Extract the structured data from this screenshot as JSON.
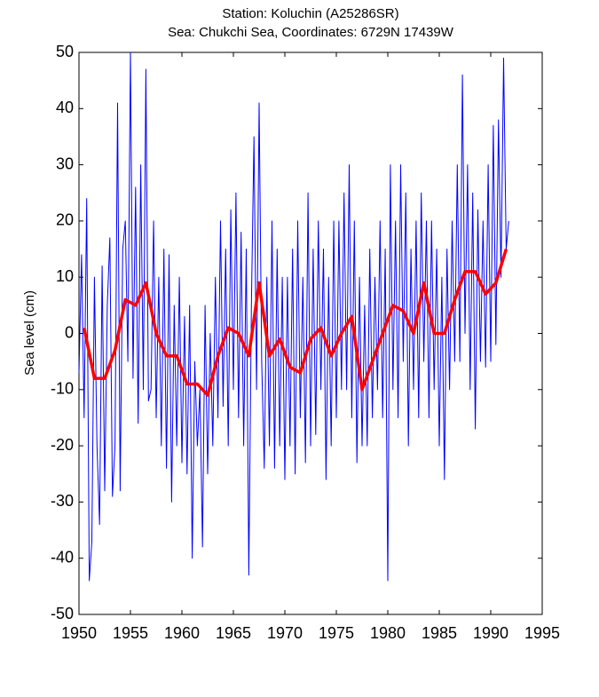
{
  "chart_data": {
    "type": "line",
    "title": "Station: Koluchin (A25286SR)",
    "subtitle": "Sea: Chukchi Sea, Coordinates: 6729N 17439W",
    "ylabel": "Sea level (cm)",
    "xlim": [
      1950,
      1995
    ],
    "xticks": [
      1950,
      1955,
      1960,
      1965,
      1970,
      1975,
      1980,
      1985,
      1990,
      1995
    ],
    "ylim": [
      -50,
      50
    ],
    "yticks": [
      -50,
      -40,
      -30,
      -20,
      -10,
      0,
      10,
      20,
      30,
      40,
      50
    ],
    "grid": false,
    "series": [
      {
        "color": "#0000ff",
        "width": 1,
        "x": [
          1950,
          1950.25,
          1950.5,
          1950.75,
          1951,
          1951.25,
          1951.5,
          1951.75,
          1952,
          1952.25,
          1952.5,
          1952.75,
          1953,
          1953.25,
          1953.5,
          1953.75,
          1954,
          1954.25,
          1954.5,
          1954.75,
          1955,
          1955.25,
          1955.5,
          1955.75,
          1956,
          1956.25,
          1956.5,
          1956.75,
          1957,
          1957.25,
          1957.5,
          1957.75,
          1958,
          1958.25,
          1958.5,
          1958.75,
          1959,
          1959.25,
          1959.5,
          1959.75,
          1960,
          1960.25,
          1960.5,
          1960.75,
          1961,
          1961.25,
          1961.5,
          1961.75,
          1962,
          1962.25,
          1962.5,
          1962.75,
          1963,
          1963.25,
          1963.5,
          1963.75,
          1964,
          1964.25,
          1964.5,
          1964.75,
          1965,
          1965.25,
          1965.5,
          1965.75,
          1966,
          1966.25,
          1966.5,
          1966.75,
          1967,
          1967.25,
          1967.5,
          1967.75,
          1968,
          1968.25,
          1968.5,
          1968.75,
          1969,
          1969.25,
          1969.5,
          1969.75,
          1970,
          1970.25,
          1970.5,
          1970.75,
          1971,
          1971.25,
          1971.5,
          1971.75,
          1972,
          1972.25,
          1972.5,
          1972.75,
          1973,
          1973.25,
          1973.5,
          1973.75,
          1974,
          1974.25,
          1974.5,
          1974.75,
          1975,
          1975.25,
          1975.5,
          1975.75,
          1976,
          1976.25,
          1976.5,
          1976.75,
          1977,
          1977.25,
          1977.5,
          1977.75,
          1978,
          1978.25,
          1978.5,
          1978.75,
          1979,
          1979.25,
          1979.5,
          1979.75,
          1980,
          1980.25,
          1980.5,
          1980.75,
          1981,
          1981.25,
          1981.5,
          1981.75,
          1982,
          1982.25,
          1982.5,
          1982.75,
          1983,
          1983.25,
          1983.5,
          1983.75,
          1984,
          1984.25,
          1984.5,
          1984.75,
          1985,
          1985.25,
          1985.5,
          1985.75,
          1986,
          1986.25,
          1986.5,
          1986.75,
          1987,
          1987.25,
          1987.5,
          1987.75,
          1988,
          1988.25,
          1988.5,
          1988.75,
          1989,
          1989.25,
          1989.5,
          1989.75,
          1990,
          1990.25,
          1990.5,
          1990.75,
          1991,
          1991.25,
          1991.5,
          1991.75
        ],
        "values": [
          -7,
          14,
          -15,
          24,
          -44,
          -37,
          10,
          -20,
          -34,
          12,
          -28,
          5,
          17,
          -29,
          -20,
          41,
          -28,
          15,
          20,
          -5,
          50,
          -8,
          26,
          -16,
          30,
          -10,
          47,
          -12,
          -10,
          20,
          -15,
          10,
          -20,
          15,
          -24,
          14,
          -30,
          5,
          -20,
          10,
          -23,
          3,
          -25,
          5,
          -40,
          -5,
          -20,
          -10,
          -38,
          5,
          -25,
          0,
          -20,
          10,
          -15,
          20,
          -13,
          15,
          -20,
          22,
          -10,
          25,
          -15,
          18,
          -20,
          15,
          -43,
          5,
          35,
          -10,
          41,
          -5,
          -24,
          10,
          -20,
          20,
          -24,
          15,
          -20,
          10,
          -26,
          10,
          -20,
          15,
          -25,
          20,
          -15,
          10,
          -23,
          25,
          -20,
          15,
          -18,
          20,
          -10,
          15,
          -26,
          10,
          -20,
          20,
          -15,
          20,
          -10,
          25,
          -10,
          30,
          -15,
          20,
          -23,
          10,
          -20,
          5,
          -20,
          15,
          -15,
          10,
          -10,
          20,
          -15,
          15,
          -44,
          30,
          -10,
          20,
          -15,
          30,
          -5,
          25,
          -20,
          15,
          -10,
          20,
          -15,
          25,
          -5,
          20,
          -15,
          20,
          -10,
          15,
          -20,
          10,
          -26,
          15,
          -10,
          20,
          -5,
          30,
          -5,
          46,
          0,
          30,
          -10,
          25,
          -17,
          22,
          -5,
          20,
          -6,
          30,
          -5,
          37,
          -2,
          38,
          10,
          49,
          15,
          20
        ]
      },
      {
        "color": "#ff0000",
        "width": 3.5,
        "x": [
          1950.5,
          1951.5,
          1952.5,
          1953.5,
          1954.5,
          1955.5,
          1956.5,
          1957.5,
          1958.5,
          1959.5,
          1960.5,
          1961.5,
          1962.5,
          1963.5,
          1964.5,
          1965.5,
          1966.5,
          1967.5,
          1968.5,
          1969.5,
          1970.5,
          1971.5,
          1972.5,
          1973.5,
          1974.5,
          1975.5,
          1976.5,
          1977.5,
          1978.5,
          1979.5,
          1980.5,
          1981.5,
          1982.5,
          1983.5,
          1984.5,
          1985.5,
          1986.5,
          1987.5,
          1988.5,
          1989.5,
          1990.5,
          1991.5
        ],
        "values": [
          1,
          -8,
          -8,
          -3,
          6,
          5,
          9,
          0,
          -4,
          -4,
          -9,
          -9,
          -11,
          -4,
          1,
          0,
          -4,
          9,
          -4,
          -1,
          -6,
          -7,
          -1,
          1,
          -4,
          0,
          3,
          -10,
          -5,
          0,
          5,
          4,
          0,
          9,
          0,
          0,
          6,
          11,
          11,
          7,
          9,
          15
        ]
      }
    ]
  }
}
